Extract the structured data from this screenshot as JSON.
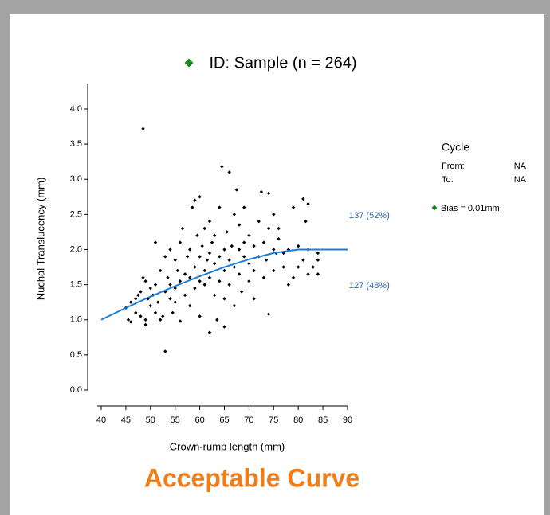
{
  "chart_data": {
    "type": "scatter",
    "title": "ID: Sample (n = 264)",
    "x_label": "Crown-rump length (mm)",
    "y_label": "Nuchal Translucency (mm)",
    "marker_color": "#1a8a1a",
    "bias": "Bias = 0.01mm",
    "annotations": [
      "137 (52%)",
      "127 (48%)"
    ],
    "xlim": [
      40,
      90
    ],
    "xticks": [
      40,
      45,
      50,
      55,
      60,
      65,
      70,
      75,
      80,
      85,
      90
    ],
    "ylim": [
      0,
      4.3
    ],
    "yticks": [
      {
        "value": 0,
        "label": "0.0"
      },
      0.5,
      {
        "value": 1,
        "label": "1.0"
      },
      1.5,
      {
        "value": 2,
        "label": "2.0"
      },
      2.5,
      {
        "value": 3,
        "label": "3.0"
      },
      3.5,
      {
        "value": 4,
        "label": "4.0"
      }
    ],
    "series": [
      {
        "type": "scatter",
        "color": "#000000",
        "x": [
          45,
          45.5,
          46,
          46,
          47,
          47,
          47.5,
          48,
          48,
          48.5,
          48.5,
          49,
          49,
          49,
          49.5,
          50,
          50,
          50.5,
          51,
          51,
          51,
          51.5,
          52,
          52,
          52.5,
          53,
          53,
          53,
          53.5,
          54,
          54,
          54,
          54.5,
          55,
          55,
          55,
          55.5,
          56,
          56,
          56,
          56.5,
          57,
          57,
          57.5,
          58,
          58,
          58,
          58.5,
          59,
          59,
          59,
          59.5,
          60,
          60,
          60,
          60,
          60.5,
          61,
          61,
          61,
          61.5,
          62,
          62,
          62,
          62,
          62.5,
          63,
          63,
          63,
          63.5,
          64,
          64,
          64,
          64.5,
          65,
          65,
          65,
          65,
          65.5,
          66,
          66,
          66,
          66.5,
          67,
          67,
          67,
          67.5,
          68,
          68,
          68,
          68.5,
          69,
          69,
          69,
          70,
          70,
          70,
          71,
          71,
          71,
          72,
          72,
          72.5,
          73,
          73,
          73.5,
          74,
          74,
          74,
          75,
          75,
          75,
          75.5,
          76,
          76,
          77,
          77,
          78,
          78,
          79,
          79,
          80,
          80,
          81,
          81,
          81.5,
          82,
          82,
          82,
          83,
          84,
          84,
          84
        ],
        "values": [
          1.17,
          1.0,
          0.97,
          1.25,
          1.3,
          1.1,
          1.35,
          1.05,
          1.4,
          3.72,
          1.6,
          1.0,
          0.93,
          1.55,
          1.3,
          1.45,
          1.2,
          1.35,
          1.5,
          2.1,
          1.1,
          1.25,
          1.0,
          1.7,
          1.05,
          0.55,
          1.4,
          1.9,
          1.6,
          1.3,
          1.5,
          2.0,
          1.1,
          1.85,
          1.45,
          1.25,
          1.7,
          1.55,
          2.1,
          0.98,
          2.3,
          1.65,
          1.35,
          1.9,
          1.6,
          2.0,
          1.2,
          2.6,
          1.75,
          1.45,
          2.7,
          2.2,
          1.9,
          1.55,
          1.05,
          2.75,
          2.05,
          1.7,
          1.5,
          2.3,
          1.85,
          0.82,
          2.4,
          1.95,
          1.6,
          2.1,
          1.8,
          1.35,
          2.2,
          1.0,
          1.9,
          1.55,
          2.6,
          3.18,
          2.0,
          1.7,
          0.9,
          1.3,
          2.25,
          3.1,
          1.85,
          1.5,
          2.05,
          2.5,
          1.2,
          1.75,
          2.85,
          2.0,
          1.65,
          2.35,
          1.4,
          2.1,
          1.9,
          2.6,
          1.8,
          2.2,
          1.55,
          2.05,
          1.7,
          1.3,
          2.4,
          1.9,
          2.82,
          2.1,
          1.6,
          1.85,
          2.8,
          1.08,
          2.3,
          2.0,
          2.5,
          1.7,
          1.95,
          2.3,
          2.15,
          1.95,
          1.75,
          2.0,
          1.5,
          1.6,
          2.6,
          1.75,
          2.05,
          2.72,
          1.85,
          2.4,
          1.65,
          2.65,
          2.0,
          1.75,
          1.65,
          1.95,
          1.85
        ]
      },
      {
        "type": "line",
        "color": "#1a7fd6",
        "x": [
          40,
          45,
          50,
          55,
          60,
          65,
          70,
          75,
          80,
          85,
          90
        ],
        "values": [
          1.0,
          1.17,
          1.33,
          1.48,
          1.62,
          1.75,
          1.86,
          1.95,
          2.0,
          2.0,
          2.0
        ]
      }
    ]
  },
  "cycle": {
    "title": "Cycle",
    "from_label": "From:",
    "from": "NA",
    "to_label": "To:",
    "to": "NA"
  },
  "caption": "Acceptable Curve"
}
